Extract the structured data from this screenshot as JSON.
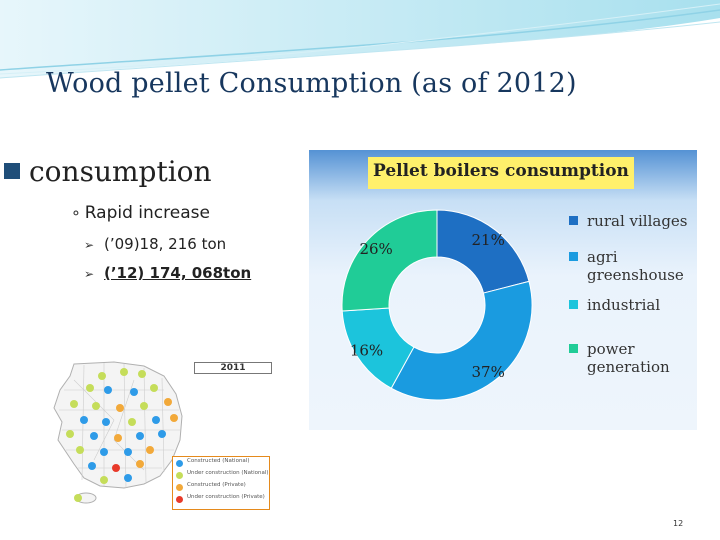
{
  "slide": {
    "title": "Wood pellet Consumption (as of 2012)",
    "bullet": "consumption",
    "sub_bullet": "Rapid increase",
    "items": [
      "(’09)18, 216 ton",
      "(’12) 174, 068ton"
    ],
    "page_number": "12"
  },
  "chart_data": {
    "type": "pie",
    "title": "Pellet boilers consumption",
    "categories": [
      "rural villages",
      "agri greenshouse",
      "industrial",
      "power generation"
    ],
    "values": [
      21,
      37,
      16,
      26
    ],
    "labels": [
      "21%",
      "37%",
      "16%",
      "26%"
    ],
    "colors": [
      "#1e6fc3",
      "#1a9be0",
      "#1cc4dc",
      "#20cc97"
    ],
    "legend_position": "right"
  },
  "map_inset": {
    "year": "2011",
    "legend": [
      {
        "label": "Constructed (National)",
        "color": "#2e9be8"
      },
      {
        "label": "Under construction (National)",
        "color": "#c5dd5a"
      },
      {
        "label": "Constructed (Private)",
        "color": "#f2a93a"
      },
      {
        "label": "Under construction (Private)",
        "color": "#e83a2a"
      }
    ]
  }
}
